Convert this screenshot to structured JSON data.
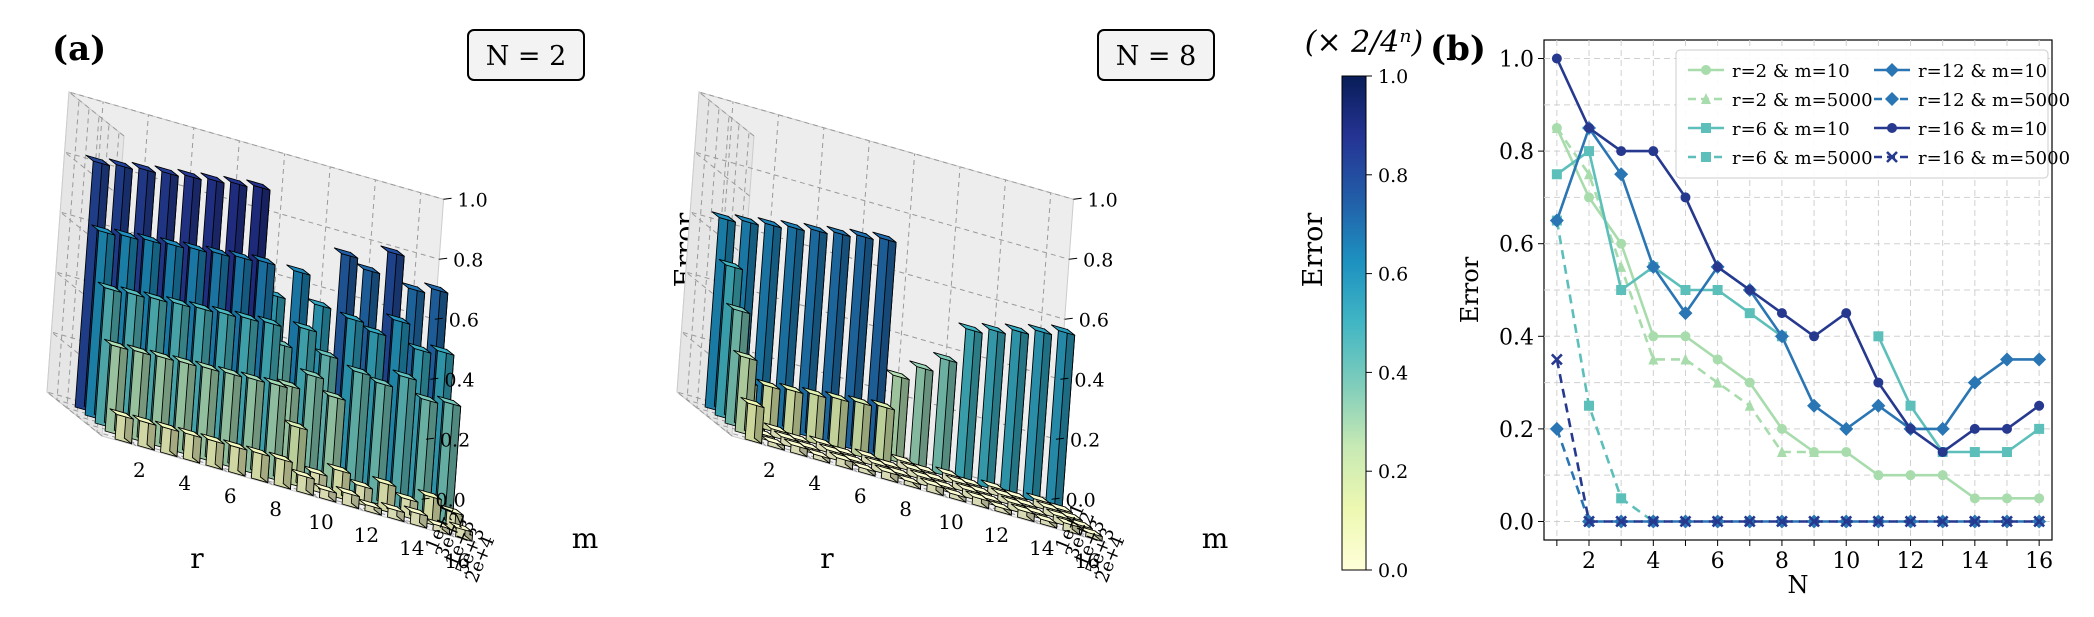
{
  "panel_a": {
    "label": "(a)",
    "charts": [
      {
        "title": "N = 2",
        "zlabel": "Error",
        "xlabel": "r",
        "ylabel": "m",
        "x_ticks": [
          "2",
          "4",
          "6",
          "8",
          "10",
          "12",
          "14",
          "16"
        ],
        "y_ticks": [
          "1e+1",
          "3e+2",
          "1e+3",
          "5e+3",
          "2e+4"
        ],
        "z_ticks": [
          "0.0",
          "0.2",
          "0.4",
          "0.6",
          "0.8",
          "1.0"
        ]
      },
      {
        "title": "N = 8",
        "zlabel": "Error",
        "xlabel": "r",
        "ylabel": "m",
        "x_ticks": [
          "2",
          "4",
          "6",
          "8",
          "10",
          "12",
          "14",
          "16"
        ],
        "y_ticks": [
          "1e+1",
          "3e+2",
          "1e+3",
          "5e+3",
          "2e+4"
        ],
        "z_ticks": [
          "0.0",
          "0.2",
          "0.4",
          "0.6",
          "0.8",
          "1.0"
        ]
      }
    ],
    "colorbar": {
      "label": "(× 2/4ⁿ)",
      "ticks": [
        "0.0",
        "0.2",
        "0.4",
        "0.6",
        "0.8",
        "1.0"
      ],
      "colors": [
        "#ffffd9",
        "#edf8b1",
        "#c7e9b4",
        "#7fcdbb",
        "#41b6c4",
        "#1d91c0",
        "#225ea8",
        "#253494",
        "#081d58"
      ]
    }
  },
  "panel_b": {
    "label": "(b)",
    "chart_data": {
      "type": "line",
      "xlabel": "N",
      "ylabel": "Error",
      "x": [
        1,
        2,
        3,
        4,
        5,
        6,
        7,
        8,
        9,
        10,
        11,
        12,
        13,
        14,
        15,
        16
      ],
      "x_ticks": [
        2,
        4,
        6,
        8,
        10,
        12,
        14,
        16
      ],
      "y_ticks": [
        "0.0",
        "0.2",
        "0.4",
        "0.6",
        "0.8",
        "1.0"
      ],
      "xlim": [
        0.6,
        16.4
      ],
      "ylim": [
        -0.04,
        1.04
      ],
      "grid": true,
      "legend_position": "top-right",
      "series": [
        {
          "name": "r=2 & m=10",
          "color": "#a8dcac",
          "marker": "circle",
          "dashed": false,
          "values": [
            0.85,
            0.7,
            0.6,
            0.4,
            0.4,
            0.35,
            0.3,
            0.2,
            0.15,
            0.15,
            0.1,
            0.1,
            0.1,
            0.05,
            0.05,
            0.05
          ]
        },
        {
          "name": "r=2 & m=5000",
          "color": "#a8dcac",
          "marker": "triangle",
          "dashed": true,
          "values": [
            0.85,
            0.75,
            0.55,
            0.35,
            0.35,
            0.3,
            0.25,
            0.15,
            0.15,
            null,
            null,
            null,
            null,
            null,
            null,
            null
          ]
        },
        {
          "name": "r=6 & m=10",
          "color": "#5cbfba",
          "marker": "square",
          "dashed": false,
          "values": [
            0.75,
            0.8,
            0.5,
            0.55,
            0.5,
            0.5,
            0.45,
            0.4,
            null,
            null,
            0.4,
            0.25,
            0.15,
            0.15,
            0.15,
            0.2
          ]
        },
        {
          "name": "r=6 & m=5000",
          "color": "#5cbfba",
          "marker": "square",
          "dashed": true,
          "values": [
            0.65,
            0.25,
            0.05,
            0.0,
            null,
            null,
            null,
            null,
            null,
            null,
            null,
            null,
            null,
            null,
            null,
            null
          ]
        },
        {
          "name": "r=12 & m=10",
          "color": "#2a75b3",
          "marker": "plus",
          "dashed": false,
          "values": [
            0.65,
            0.85,
            0.75,
            0.55,
            0.45,
            0.55,
            0.5,
            0.4,
            0.25,
            0.2,
            0.25,
            0.2,
            0.2,
            0.3,
            0.35,
            0.35
          ]
        },
        {
          "name": "r=12 & m=5000",
          "color": "#2a75b3",
          "marker": "plus",
          "dashed": true,
          "values": [
            0.2,
            0.0,
            0.0,
            0.0,
            0.0,
            0.0,
            0.0,
            0.0,
            0.0,
            0.0,
            0.0,
            0.0,
            0.0,
            0.0,
            0.0,
            0.0
          ]
        },
        {
          "name": "r=16 & m=10",
          "color": "#26398f",
          "marker": "circle",
          "dashed": false,
          "values": [
            1.0,
            0.85,
            0.8,
            0.8,
            0.7,
            0.55,
            0.5,
            0.45,
            0.4,
            0.45,
            0.3,
            0.2,
            0.15,
            0.2,
            0.2,
            0.25
          ]
        },
        {
          "name": "r=16 & m=5000",
          "color": "#26398f",
          "marker": "x",
          "dashed": true,
          "values": [
            0.35,
            0.0,
            0.0,
            0.0,
            0.0,
            0.0,
            0.0,
            0.0,
            0.0,
            0.0,
            0.0,
            0.0,
            0.0,
            0.0,
            0.0,
            0.0
          ]
        }
      ]
    }
  }
}
